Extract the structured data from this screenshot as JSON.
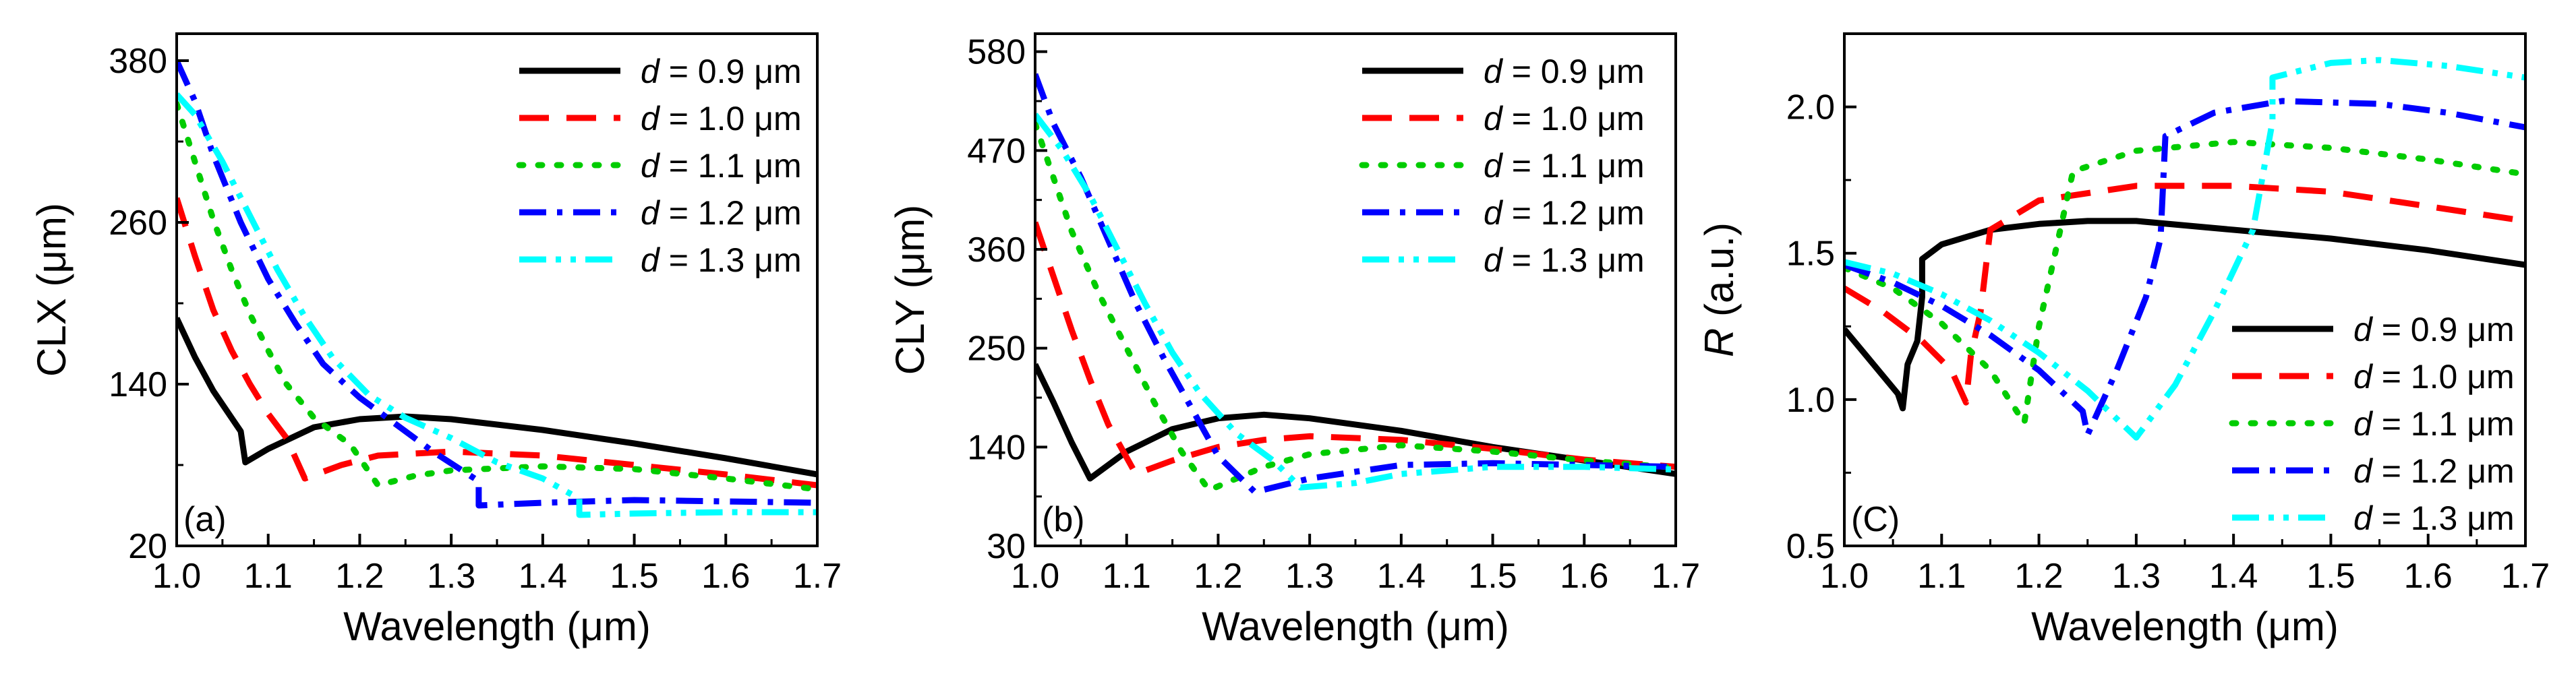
{
  "chart_data": [
    {
      "type": "line",
      "panel_label": "(a)",
      "xlabel": "Wavelength (μm)",
      "ylabel": "CLX (μm)",
      "xlim": [
        1.0,
        1.7
      ],
      "ylim": [
        20,
        400
      ],
      "xticks": [
        "1.0",
        "1.1",
        "1.2",
        "1.3",
        "1.4",
        "1.5",
        "1.6",
        "1.7"
      ],
      "yticks": [
        "20",
        "140",
        "260",
        "380"
      ],
      "grid": false,
      "legend_position": "top-right",
      "series": [
        {
          "name": "d = 0.9 μm",
          "color": "#000000",
          "dash": "solid",
          "points": [
            [
              1.0,
              189
            ],
            [
              1.02,
              160
            ],
            [
              1.04,
              135
            ],
            [
              1.06,
              115
            ],
            [
              1.07,
              105
            ],
            [
              1.075,
              82
            ],
            [
              1.1,
              92
            ],
            [
              1.15,
              108
            ],
            [
              1.2,
              114
            ],
            [
              1.25,
              116
            ],
            [
              1.3,
              114
            ],
            [
              1.4,
              106
            ],
            [
              1.5,
              96
            ],
            [
              1.6,
              85
            ],
            [
              1.7,
              73
            ]
          ]
        },
        {
          "name": "d = 1.0 μm",
          "color": "#ff0000",
          "dash": "dashed",
          "points": [
            [
              1.0,
              278
            ],
            [
              1.02,
              235
            ],
            [
              1.04,
              195
            ],
            [
              1.06,
              165
            ],
            [
              1.08,
              140
            ],
            [
              1.1,
              118
            ],
            [
              1.12,
              100
            ],
            [
              1.14,
              70
            ],
            [
              1.18,
              80
            ],
            [
              1.22,
              87
            ],
            [
              1.3,
              90
            ],
            [
              1.4,
              87
            ],
            [
              1.5,
              80
            ],
            [
              1.6,
              73
            ],
            [
              1.7,
              65
            ]
          ]
        },
        {
          "name": "d = 1.1 μm",
          "color": "#00cc00",
          "dash": "dotted",
          "points": [
            [
              1.0,
              348
            ],
            [
              1.02,
              305
            ],
            [
              1.04,
              262
            ],
            [
              1.06,
              225
            ],
            [
              1.08,
              192
            ],
            [
              1.1,
              165
            ],
            [
              1.12,
              140
            ],
            [
              1.15,
              115
            ],
            [
              1.19,
              95
            ],
            [
              1.22,
              65
            ],
            [
              1.26,
              72
            ],
            [
              1.3,
              76
            ],
            [
              1.4,
              79
            ],
            [
              1.5,
              77
            ],
            [
              1.6,
              70
            ],
            [
              1.7,
              62
            ]
          ]
        },
        {
          "name": "d = 1.2 μm",
          "color": "#0000ff",
          "dash": "dashdot",
          "points": [
            [
              1.0,
              380
            ],
            [
              1.02,
              350
            ],
            [
              1.04,
              310
            ],
            [
              1.07,
              260
            ],
            [
              1.1,
              218
            ],
            [
              1.13,
              185
            ],
            [
              1.16,
              155
            ],
            [
              1.2,
              130
            ],
            [
              1.24,
              110
            ],
            [
              1.28,
              90
            ],
            [
              1.33,
              68
            ],
            [
              1.33,
              50
            ],
            [
              1.4,
              52
            ],
            [
              1.5,
              54
            ],
            [
              1.6,
              53
            ],
            [
              1.7,
              52
            ]
          ]
        },
        {
          "name": "d = 1.3 μm",
          "color": "#00ffff",
          "dash": "dashdotdot",
          "points": [
            [
              1.0,
              355
            ],
            [
              1.02,
              340
            ],
            [
              1.05,
              305
            ],
            [
              1.08,
              265
            ],
            [
              1.11,
              225
            ],
            [
              1.14,
              190
            ],
            [
              1.17,
              160
            ],
            [
              1.21,
              132
            ],
            [
              1.25,
              115
            ],
            [
              1.3,
              100
            ],
            [
              1.35,
              82
            ],
            [
              1.4,
              70
            ],
            [
              1.44,
              55
            ],
            [
              1.44,
              43
            ],
            [
              1.5,
              44
            ],
            [
              1.6,
              45
            ],
            [
              1.7,
              45
            ]
          ]
        }
      ]
    },
    {
      "type": "line",
      "panel_label": "(b)",
      "xlabel": "Wavelength (μm)",
      "ylabel": "CLY (μm)",
      "xlim": [
        1.0,
        1.7
      ],
      "ylim": [
        30,
        600
      ],
      "xticks": [
        "1.0",
        "1.1",
        "1.2",
        "1.3",
        "1.4",
        "1.5",
        "1.6",
        "1.7"
      ],
      "yticks": [
        "30",
        "140",
        "250",
        "360",
        "470",
        "580"
      ],
      "grid": false,
      "legend_position": "top-right",
      "series": [
        {
          "name": "d = 0.9 μm",
          "color": "#000000",
          "dash": "solid",
          "points": [
            [
              1.0,
              232
            ],
            [
              1.02,
              190
            ],
            [
              1.04,
              145
            ],
            [
              1.06,
              105
            ],
            [
              1.1,
              135
            ],
            [
              1.15,
              160
            ],
            [
              1.2,
              172
            ],
            [
              1.25,
              176
            ],
            [
              1.3,
              172
            ],
            [
              1.4,
              158
            ],
            [
              1.5,
              140
            ],
            [
              1.6,
              125
            ],
            [
              1.7,
              110
            ]
          ]
        },
        {
          "name": "d = 1.0 μm",
          "color": "#ff0000",
          "dash": "dashed",
          "points": [
            [
              1.0,
              390
            ],
            [
              1.02,
              330
            ],
            [
              1.04,
              270
            ],
            [
              1.06,
              215
            ],
            [
              1.08,
              165
            ],
            [
              1.11,
              110
            ],
            [
              1.15,
              125
            ],
            [
              1.2,
              140
            ],
            [
              1.25,
              148
            ],
            [
              1.3,
              152
            ],
            [
              1.4,
              148
            ],
            [
              1.5,
              138
            ],
            [
              1.6,
              126
            ],
            [
              1.7,
              118
            ]
          ]
        },
        {
          "name": "d = 1.1 μm",
          "color": "#00cc00",
          "dash": "dotted",
          "points": [
            [
              1.0,
              500
            ],
            [
              1.02,
              440
            ],
            [
              1.04,
              380
            ],
            [
              1.07,
              310
            ],
            [
              1.1,
              250
            ],
            [
              1.13,
              190
            ],
            [
              1.16,
              135
            ],
            [
              1.19,
              92
            ],
            [
              1.25,
              118
            ],
            [
              1.3,
              132
            ],
            [
              1.4,
              142
            ],
            [
              1.5,
              135
            ],
            [
              1.6,
              125
            ],
            [
              1.7,
              117
            ]
          ]
        },
        {
          "name": "d = 1.2 μm",
          "color": "#0000ff",
          "dash": "dashdot",
          "points": [
            [
              1.0,
              555
            ],
            [
              1.02,
              500
            ],
            [
              1.05,
              440
            ],
            [
              1.08,
              370
            ],
            [
              1.11,
              300
            ],
            [
              1.14,
              240
            ],
            [
              1.17,
              185
            ],
            [
              1.2,
              130
            ],
            [
              1.24,
              90
            ],
            [
              1.3,
              105
            ],
            [
              1.4,
              120
            ],
            [
              1.5,
              122
            ],
            [
              1.6,
              120
            ],
            [
              1.7,
              118
            ]
          ]
        },
        {
          "name": "d = 1.3 μm",
          "color": "#00ffff",
          "dash": "dashdotdot",
          "points": [
            [
              1.0,
              510
            ],
            [
              1.03,
              470
            ],
            [
              1.06,
              420
            ],
            [
              1.09,
              360
            ],
            [
              1.12,
              300
            ],
            [
              1.15,
              245
            ],
            [
              1.18,
              200
            ],
            [
              1.22,
              155
            ],
            [
              1.26,
              125
            ],
            [
              1.29,
              95
            ],
            [
              1.35,
              100
            ],
            [
              1.4,
              110
            ],
            [
              1.5,
              118
            ],
            [
              1.6,
              118
            ],
            [
              1.7,
              115
            ]
          ]
        }
      ]
    },
    {
      "type": "line",
      "panel_label": "(C)",
      "xlabel": "Wavelength (μm)",
      "ylabel": "R (a.u.)",
      "xlim": [
        1.0,
        1.7
      ],
      "ylim": [
        0.5,
        2.25
      ],
      "xticks": [
        "1.0",
        "1.1",
        "1.2",
        "1.3",
        "1.4",
        "1.5",
        "1.6",
        "1.7"
      ],
      "yticks": [
        "0.5",
        "1.0",
        "1.5",
        "2.0"
      ],
      "grid": false,
      "legend_position": "bottom-right",
      "series": [
        {
          "name": "d = 0.9 μm",
          "color": "#000000",
          "dash": "solid",
          "points": [
            [
              1.0,
              1.24
            ],
            [
              1.02,
              1.16
            ],
            [
              1.04,
              1.08
            ],
            [
              1.055,
              1.02
            ],
            [
              1.06,
              0.97
            ],
            [
              1.065,
              1.12
            ],
            [
              1.075,
              1.2
            ],
            [
              1.08,
              1.35
            ],
            [
              1.08,
              1.48
            ],
            [
              1.1,
              1.53
            ],
            [
              1.15,
              1.58
            ],
            [
              1.2,
              1.6
            ],
            [
              1.25,
              1.61
            ],
            [
              1.3,
              1.61
            ],
            [
              1.4,
              1.58
            ],
            [
              1.5,
              1.55
            ],
            [
              1.6,
              1.51
            ],
            [
              1.7,
              1.46
            ]
          ]
        },
        {
          "name": "d = 1.0 μm",
          "color": "#ff0000",
          "dash": "dashed",
          "points": [
            [
              1.0,
              1.38
            ],
            [
              1.04,
              1.3
            ],
            [
              1.08,
              1.2
            ],
            [
              1.11,
              1.1
            ],
            [
              1.125,
              0.99
            ],
            [
              1.13,
              1.15
            ],
            [
              1.14,
              1.3
            ],
            [
              1.15,
              1.58
            ],
            [
              1.2,
              1.68
            ],
            [
              1.3,
              1.73
            ],
            [
              1.4,
              1.73
            ],
            [
              1.5,
              1.71
            ],
            [
              1.6,
              1.66
            ],
            [
              1.7,
              1.61
            ]
          ]
        },
        {
          "name": "d = 1.1 μm",
          "color": "#00cc00",
          "dash": "dotted",
          "points": [
            [
              1.0,
              1.45
            ],
            [
              1.05,
              1.38
            ],
            [
              1.1,
              1.26
            ],
            [
              1.15,
              1.1
            ],
            [
              1.185,
              0.92
            ],
            [
              1.2,
              1.25
            ],
            [
              1.22,
              1.55
            ],
            [
              1.235,
              1.78
            ],
            [
              1.3,
              1.85
            ],
            [
              1.4,
              1.88
            ],
            [
              1.5,
              1.86
            ],
            [
              1.6,
              1.82
            ],
            [
              1.7,
              1.77
            ]
          ]
        },
        {
          "name": "d = 1.2 μm",
          "color": "#0000ff",
          "dash": "dashdot",
          "points": [
            [
              1.0,
              1.46
            ],
            [
              1.05,
              1.4
            ],
            [
              1.1,
              1.32
            ],
            [
              1.15,
              1.22
            ],
            [
              1.2,
              1.1
            ],
            [
              1.245,
              0.96
            ],
            [
              1.25,
              0.88
            ],
            [
              1.28,
              1.1
            ],
            [
              1.31,
              1.35
            ],
            [
              1.325,
              1.55
            ],
            [
              1.33,
              1.9
            ],
            [
              1.38,
              1.98
            ],
            [
              1.45,
              2.02
            ],
            [
              1.55,
              2.01
            ],
            [
              1.62,
              1.98
            ],
            [
              1.7,
              1.93
            ]
          ]
        },
        {
          "name": "d = 1.3 μm",
          "color": "#00ffff",
          "dash": "dashdotdot",
          "points": [
            [
              1.0,
              1.47
            ],
            [
              1.05,
              1.43
            ],
            [
              1.1,
              1.36
            ],
            [
              1.15,
              1.27
            ],
            [
              1.2,
              1.16
            ],
            [
              1.25,
              1.03
            ],
            [
              1.3,
              0.87
            ],
            [
              1.34,
              1.05
            ],
            [
              1.38,
              1.3
            ],
            [
              1.42,
              1.58
            ],
            [
              1.44,
              1.95
            ],
            [
              1.44,
              2.1
            ],
            [
              1.5,
              2.15
            ],
            [
              1.55,
              2.16
            ],
            [
              1.62,
              2.14
            ],
            [
              1.7,
              2.1
            ]
          ]
        }
      ]
    }
  ]
}
